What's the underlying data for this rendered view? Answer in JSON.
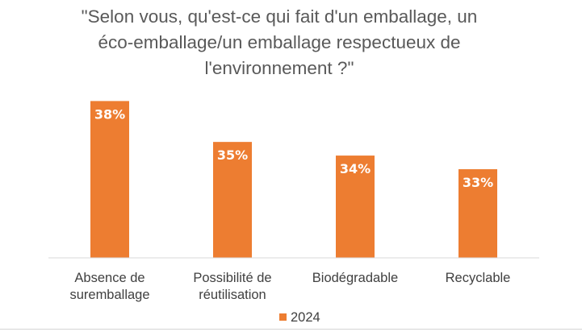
{
  "chart_data": {
    "type": "bar",
    "title_lines": [
      "\"Selon vous, qu'est-ce qui fait d'un emballage, un",
      "éco-emballage/un emballage respectueux de",
      "l'environnement ?\""
    ],
    "categories": [
      [
        "Absence de",
        "suremballage"
      ],
      [
        "Possibilité de",
        "réutilisation"
      ],
      [
        "Biodégradable"
      ],
      [
        "Recyclable"
      ]
    ],
    "series": [
      {
        "name": "2024",
        "values": [
          38,
          35,
          34,
          33
        ],
        "labels": [
          "38%",
          "35%",
          "34%",
          "33%"
        ],
        "color": "#ed7d31"
      }
    ],
    "ylim": [
      26.5,
      39.5
    ],
    "grid": false,
    "legend_position": "bottom"
  }
}
